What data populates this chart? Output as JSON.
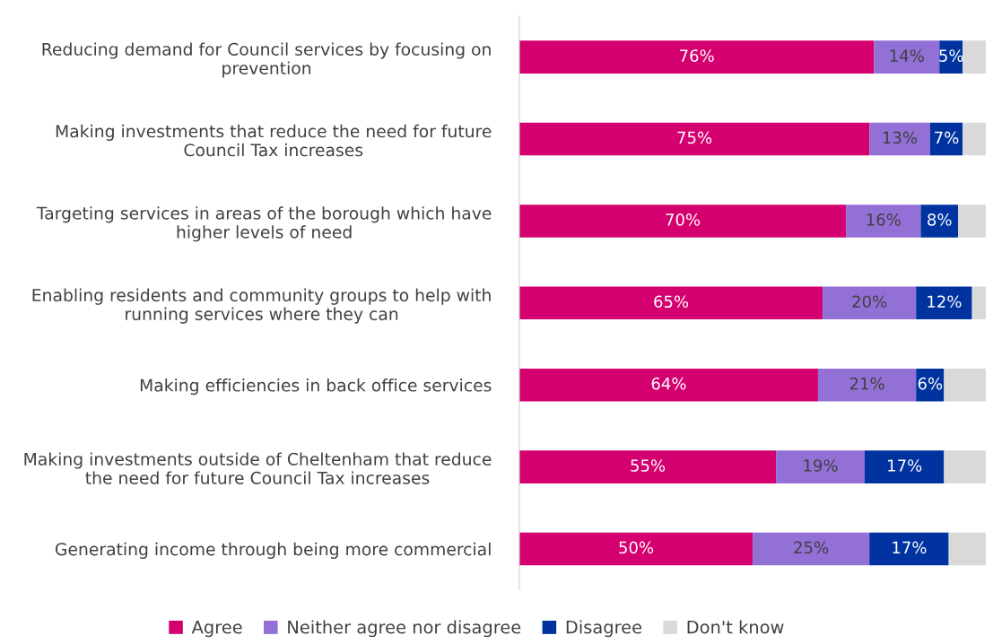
{
  "chart_data": {
    "type": "bar",
    "orientation": "horizontal",
    "stacked": true,
    "legend": "bottom",
    "grid": false,
    "tick_labels": "y",
    "categories": [
      "Reducing demand for Council services by focusing on\nprevention",
      "Making investments that reduce the need for future\nCouncil Tax increases",
      "Targeting services in areas of the borough which have\nhigher levels of need",
      "Enabling residents and community groups to help with\nrunning services where they can",
      "Making efficiencies in back office services",
      "Making investments outside of Cheltenham that reduce\nthe need for future Council Tax increases",
      "Generating income through being more commercial"
    ],
    "series": [
      {
        "name": "Agree",
        "color": "#d4006f",
        "values": [
          76,
          75,
          70,
          65,
          64,
          55,
          50
        ],
        "value_labels": [
          "76%",
          "75%",
          "70%",
          "65%",
          "64%",
          "55%",
          "50%"
        ]
      },
      {
        "name": "Neither agree nor disagree",
        "color": "#9270d6",
        "values": [
          14,
          13,
          16,
          20,
          21,
          19,
          25
        ],
        "value_labels": [
          "14%",
          "13%",
          "16%",
          "20%",
          "21%",
          "19%",
          "25%"
        ]
      },
      {
        "name": "Disagree",
        "color": "#0033a0",
        "values": [
          5,
          7,
          8,
          12,
          6,
          17,
          17
        ],
        "value_labels": [
          "5%",
          "7%",
          "8%",
          "12%",
          "6%",
          "17%",
          "17%"
        ]
      },
      {
        "name": "Don't know",
        "color": "#d9d9d9",
        "values": [
          5,
          5,
          6,
          3,
          9,
          9,
          8
        ],
        "value_labels": [
          null,
          null,
          null,
          null,
          null,
          null,
          null
        ]
      }
    ]
  }
}
